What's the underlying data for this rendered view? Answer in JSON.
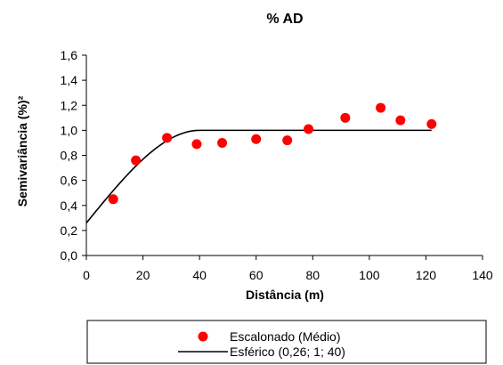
{
  "chart_data": {
    "type": "scatter",
    "title": "% AD",
    "xlabel": "Distância (m)",
    "ylabel": "Semivariância (%)²",
    "xlim": [
      0,
      140
    ],
    "ylim": [
      0,
      1.6
    ],
    "x_ticks": [
      0,
      20,
      40,
      60,
      80,
      100,
      120,
      140
    ],
    "y_ticks": [
      0,
      0.2,
      0.4,
      0.6,
      0.8,
      1.0,
      1.2,
      1.4,
      1.6
    ],
    "x_tick_labels": [
      "0",
      "20",
      "40",
      "60",
      "80",
      "100",
      "120",
      "140"
    ],
    "y_tick_labels": [
      "0,0",
      "0,2",
      "0,4",
      "0,6",
      "0,8",
      "1,0",
      "1,2",
      "1,4",
      "1,6"
    ],
    "grid": false,
    "legend_position": "bottom",
    "series": [
      {
        "name": "Escalonado (Médio)",
        "kind": "scatter",
        "color": "#ff0000",
        "x": [
          9.5,
          17.5,
          28.5,
          39,
          48,
          60,
          71,
          78.5,
          91.5,
          104,
          111,
          122
        ],
        "y": [
          0.45,
          0.76,
          0.94,
          0.89,
          0.9,
          0.93,
          0.92,
          1.01,
          1.1,
          1.18,
          1.08,
          1.05
        ]
      },
      {
        "name": "Esférico  (0,26; 1; 40)",
        "kind": "line",
        "color": "#000000",
        "model": "spherical",
        "nugget": 0.26,
        "sill": 1,
        "range": 40,
        "x_start": 0,
        "x_end": 122
      }
    ]
  }
}
